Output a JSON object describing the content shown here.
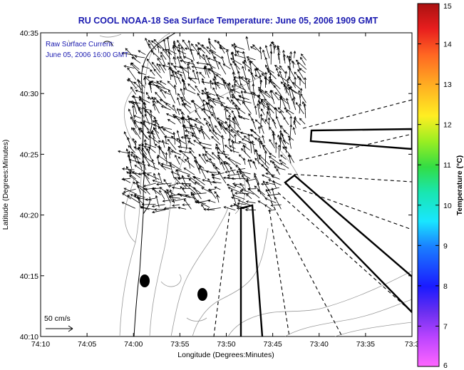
{
  "title": "RU COOL  NOAA-18  Sea Surface Temperature:  June 05, 2006 1909 GMT",
  "annotation": {
    "line1": "Raw Surface Current:",
    "line2": "June 05, 2006 16:00 GMT"
  },
  "scale_label": "50 cm/s",
  "axes": {
    "xlabel": "Longitude (Degrees:Minutes)",
    "ylabel": "Latitude (Degrees:Minutes)",
    "xticks": [
      "74:10",
      "74:05",
      "74:00",
      "73:55",
      "73:50",
      "73:45",
      "73:40",
      "73:35",
      "73:3"
    ],
    "yticks": [
      "40:35",
      "40:30",
      "40:25",
      "40:20",
      "40:15",
      "40:10"
    ]
  },
  "colorbar": {
    "label": "Temperature (°C)",
    "ticks": [
      "15",
      "14",
      "13",
      "12",
      "11",
      "10",
      "9",
      "8",
      "7",
      "6"
    ],
    "min": 6,
    "max": 15
  },
  "colors": {
    "title": "#1a1ab0",
    "coastline": "#000000",
    "bathymetry": "#9a9a9a"
  }
}
